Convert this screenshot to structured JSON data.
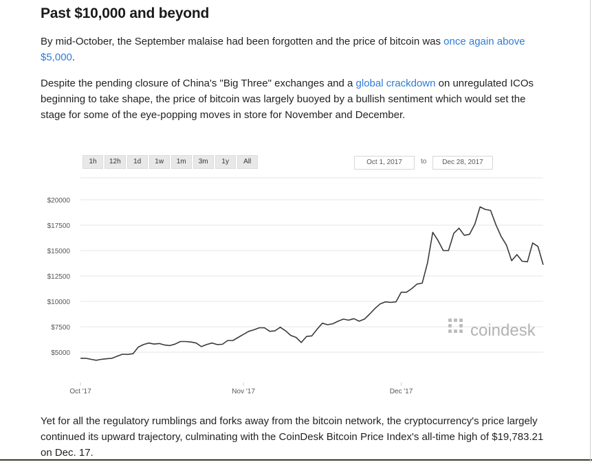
{
  "article": {
    "heading": "Past $10,000 and beyond",
    "p1_text": "By mid-October, the September malaise had been forgotten and the price of bitcoin was ",
    "p1_link": "once again above $5,000",
    "p1_end": ".",
    "p2_start": "Despite the pending closure of China's \"Big Three\" exchanges and a ",
    "p2_link": "global crackdown",
    "p2_end": " on unregulated ICOs beginning to take shape, the price of bitcoin was largely buoyed by a bullish sentiment which would set the stage for some of the eye-popping moves in store for November and December.",
    "p3_text": "Yet for all the regulatory rumblings and forks away from the bitcoin network, the cryptocurrency's price largely continued its upward trajectory, culminating with the CoinDesk Bitcoin Price Index's all-time high of $19,783.21 on Dec. 17."
  },
  "chart_controls": {
    "ranges": [
      "1h",
      "12h",
      "1d",
      "1w",
      "1m",
      "3m",
      "1y",
      "All"
    ],
    "from_date": "Oct 1, 2017",
    "separator": "to",
    "to_date": "Dec 28, 2017",
    "watermark": "coindesk"
  },
  "colors": {
    "link": "#2f7bd6",
    "line": "#3a3a3a",
    "grid": "#e6e6e6"
  },
  "chart_data": {
    "type": "line",
    "title": "",
    "xlabel": "",
    "ylabel": "",
    "y_ticks": [
      5000,
      7500,
      10000,
      12500,
      15000,
      17500,
      20000
    ],
    "y_tick_labels": [
      "$5000",
      "$7500",
      "$10000",
      "$12500",
      "$15000",
      "$17500",
      "$20000"
    ],
    "ylim": [
      3000,
      21500
    ],
    "x_tick_labels": [
      "Oct '17",
      "Nov '17",
      "Dec '17"
    ],
    "x_tick_days": [
      0,
      31,
      61
    ],
    "xlim": [
      0,
      88
    ],
    "grid": true,
    "series": [
      {
        "name": "",
        "x": [
          0,
          1,
          2,
          3,
          4,
          5,
          6,
          7,
          8,
          9,
          10,
          11,
          12,
          13,
          14,
          15,
          16,
          17,
          18,
          19,
          20,
          21,
          22,
          23,
          24,
          25,
          26,
          27,
          28,
          29,
          30,
          31,
          32,
          33,
          34,
          35,
          36,
          37,
          38,
          39,
          40,
          41,
          42,
          43,
          44,
          45,
          46,
          47,
          48,
          49,
          50,
          51,
          52,
          53,
          54,
          55,
          56,
          57,
          58,
          59,
          60,
          61,
          62,
          63,
          64,
          65,
          66,
          67,
          68,
          69,
          70,
          71,
          72,
          73,
          74,
          75,
          76,
          77,
          78,
          79,
          80,
          81,
          82,
          83,
          84,
          85,
          86,
          87,
          88
        ],
        "y": [
          4400,
          4400,
          4300,
          4200,
          4300,
          4350,
          4400,
          4600,
          4800,
          4780,
          4850,
          5500,
          5750,
          5900,
          5800,
          5850,
          5700,
          5650,
          5800,
          6050,
          6050,
          6000,
          5900,
          5550,
          5750,
          5900,
          5750,
          5780,
          6150,
          6150,
          6450,
          6750,
          7050,
          7200,
          7400,
          7400,
          7050,
          7100,
          7450,
          7100,
          6650,
          6450,
          5950,
          6550,
          6600,
          7250,
          7850,
          7700,
          7800,
          8050,
          8250,
          8150,
          8300,
          8050,
          8250,
          8750,
          9300,
          9750,
          9950,
          9900,
          9950,
          10900,
          10900,
          11250,
          11700,
          11800,
          13800,
          16800,
          16000,
          15000,
          15000,
          16700,
          17200,
          16500,
          16600,
          17600,
          19300,
          19050,
          18950,
          17550,
          16400,
          15550,
          14000,
          14600,
          13950,
          13900,
          15750,
          15400,
          13600
        ]
      }
    ]
  }
}
